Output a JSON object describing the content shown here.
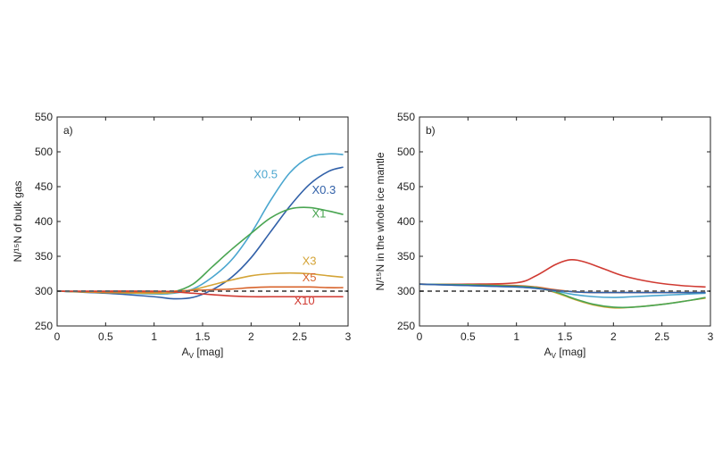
{
  "chart_data": [
    {
      "type": "line",
      "panel_label": "a)",
      "xlabel_main": "A",
      "xlabel_sub": "V",
      "xlabel_unit": " [mag]",
      "ylabel": "N/¹⁵N of bulk gas",
      "xlim": [
        0,
        3
      ],
      "ylim": [
        250,
        550
      ],
      "xticks": [
        0,
        0.5,
        1,
        1.5,
        2,
        2.5,
        3
      ],
      "xtick_labels": [
        "0",
        "0.5",
        "1",
        "1.5",
        "2",
        "2.5",
        "3"
      ],
      "yticks": [
        250,
        300,
        350,
        400,
        450,
        500,
        550
      ],
      "ytick_labels": [
        "250",
        "300",
        "350",
        "400",
        "450",
        "500",
        "550"
      ],
      "reference_line": {
        "y": 300,
        "color": "#666666"
      },
      "series": [
        {
          "name": "X0.5",
          "color": "#4aa6cf",
          "x": [
            0,
            0.5,
            1,
            1.2,
            1.4,
            1.6,
            1.8,
            2,
            2.2,
            2.4,
            2.6,
            2.8,
            2.95
          ],
          "y": [
            300,
            298,
            296,
            297,
            303,
            320,
            345,
            383,
            430,
            470,
            492,
            497,
            496
          ]
        },
        {
          "name": "X0.3",
          "color": "#3160a8",
          "x": [
            0,
            0.5,
            1,
            1.2,
            1.4,
            1.6,
            1.8,
            2,
            2.2,
            2.4,
            2.6,
            2.8,
            2.95
          ],
          "y": [
            300,
            297,
            292,
            289,
            291,
            302,
            320,
            348,
            385,
            422,
            453,
            472,
            478
          ]
        },
        {
          "name": "X1",
          "color": "#4aa552",
          "x": [
            0,
            0.5,
            1,
            1.2,
            1.4,
            1.6,
            1.8,
            2,
            2.2,
            2.4,
            2.6,
            2.8,
            2.95
          ],
          "y": [
            300,
            298,
            297,
            299,
            310,
            335,
            360,
            383,
            405,
            418,
            420,
            415,
            410
          ]
        },
        {
          "name": "X3",
          "color": "#d4a437",
          "x": [
            0,
            0.5,
            1,
            1.2,
            1.4,
            1.6,
            1.8,
            2,
            2.2,
            2.4,
            2.6,
            2.8,
            2.95
          ],
          "y": [
            300,
            298,
            297,
            298,
            302,
            309,
            316,
            322,
            325,
            326,
            325,
            322,
            320
          ]
        },
        {
          "name": "X5",
          "color": "#d8642c",
          "x": [
            0,
            0.5,
            1,
            1.2,
            1.4,
            1.6,
            1.8,
            2,
            2.2,
            2.4,
            2.6,
            2.8,
            2.95
          ],
          "y": [
            300,
            299,
            299,
            300,
            301,
            302,
            303,
            305,
            306,
            306,
            306,
            305,
            305
          ]
        },
        {
          "name": "X10",
          "color": "#d03a32",
          "x": [
            0,
            0.5,
            1,
            1.2,
            1.4,
            1.6,
            1.8,
            2,
            2.2,
            2.4,
            2.6,
            2.8,
            2.95
          ],
          "y": [
            300,
            300,
            300,
            299,
            297,
            295,
            293,
            292,
            292,
            292,
            292,
            292,
            292
          ]
        }
      ],
      "annotations": [
        {
          "text": "X0.5",
          "series": "X0.5",
          "x": 2.15,
          "y": 462
        },
        {
          "text": "X0.3",
          "series": "X0.3",
          "x": 2.75,
          "y": 440
        },
        {
          "text": "X1",
          "series": "X1",
          "x": 2.7,
          "y": 406
        },
        {
          "text": "X3",
          "series": "X3",
          "x": 2.6,
          "y": 338
        },
        {
          "text": "X5",
          "series": "X5",
          "x": 2.6,
          "y": 314
        },
        {
          "text": "X10",
          "series": "X10",
          "x": 2.55,
          "y": 281
        }
      ]
    },
    {
      "type": "line",
      "panel_label": "b)",
      "xlabel_main": "A",
      "xlabel_sub": "V",
      "xlabel_unit": " [mag]",
      "ylabel": "N/¹⁵N in the whole ice mantle",
      "xlim": [
        0,
        3
      ],
      "ylim": [
        250,
        550
      ],
      "xticks": [
        0,
        0.5,
        1,
        1.5,
        2,
        2.5,
        3
      ],
      "xtick_labels": [
        "0",
        "0.5",
        "1",
        "1.5",
        "2",
        "2.5",
        "3"
      ],
      "yticks": [
        250,
        300,
        350,
        400,
        450,
        500,
        550
      ],
      "ytick_labels": [
        "250",
        "300",
        "350",
        "400",
        "450",
        "500",
        "550"
      ],
      "reference_line": {
        "y": 300,
        "color": "#666666"
      },
      "series": [
        {
          "name": "X10",
          "color": "#d03a32",
          "x": [
            0,
            0.5,
            1,
            1.2,
            1.4,
            1.55,
            1.7,
            1.9,
            2.1,
            2.4,
            2.7,
            2.95
          ],
          "y": [
            310,
            310,
            312,
            322,
            338,
            345,
            342,
            332,
            322,
            313,
            308,
            306
          ]
        },
        {
          "name": "X5",
          "color": "#d8642c",
          "x": [
            0,
            0.5,
            1,
            1.2,
            1.4,
            1.6,
            1.8,
            2,
            2.2,
            2.5,
            2.8,
            2.95
          ],
          "y": [
            310,
            309,
            308,
            306,
            302,
            299,
            298,
            298,
            298,
            298,
            298,
            298
          ]
        },
        {
          "name": "X3",
          "color": "#d4a437",
          "x": [
            0,
            0.5,
            1,
            1.2,
            1.4,
            1.6,
            1.8,
            2,
            2.2,
            2.5,
            2.8,
            2.95
          ],
          "y": [
            310,
            309,
            307,
            305,
            298,
            288,
            280,
            276,
            277,
            281,
            287,
            290
          ]
        },
        {
          "name": "X1",
          "color": "#4aa552",
          "x": [
            0,
            0.5,
            1,
            1.2,
            1.4,
            1.6,
            1.8,
            2,
            2.2,
            2.5,
            2.8,
            2.95
          ],
          "y": [
            310,
            309,
            307,
            305,
            299,
            289,
            281,
            277,
            277,
            281,
            287,
            291
          ]
        },
        {
          "name": "X0.5",
          "color": "#4aa6cf",
          "x": [
            0,
            0.5,
            1,
            1.2,
            1.4,
            1.6,
            1.8,
            2,
            2.2,
            2.5,
            2.8,
            2.95
          ],
          "y": [
            310,
            308,
            306,
            304,
            300,
            295,
            292,
            291,
            292,
            294,
            296,
            297
          ]
        },
        {
          "name": "X0.3",
          "color": "#3160a8",
          "x": [
            0,
            0.5,
            1,
            1.2,
            1.4,
            1.6,
            1.8,
            2,
            2.2,
            2.5,
            2.8,
            2.95
          ],
          "y": [
            310,
            308,
            306,
            304,
            301,
            299,
            298,
            298,
            298,
            298,
            298,
            298
          ]
        }
      ],
      "annotations": []
    }
  ]
}
